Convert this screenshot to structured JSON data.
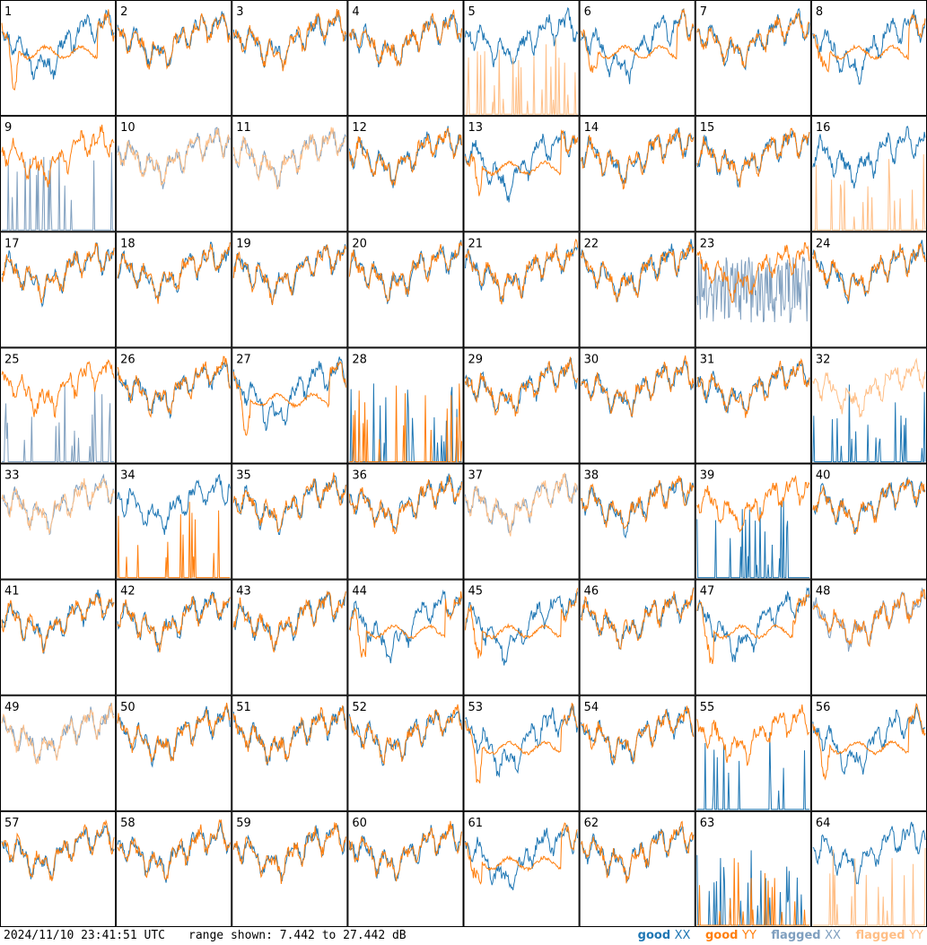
{
  "footer": {
    "timestamp": "2024/11/10 23:41:51 UTC",
    "range": "range shown: 7.442 to 27.442 dB",
    "legend": {
      "good_xx": {
        "prefix": "good ",
        "pol": "XX"
      },
      "good_yy": {
        "prefix": "good ",
        "pol": "YY"
      },
      "flagged_xx": {
        "prefix": "flagged ",
        "pol": "XX"
      },
      "flagged_yy": {
        "prefix": "flagged ",
        "pol": "YY"
      }
    }
  },
  "colors": {
    "good_xx": "#1f77b4",
    "good_yy": "#ff7f0e",
    "flagged_xx": "#7f9fbf",
    "flagged_yy": "#ffbf87"
  },
  "chart_data": {
    "type": "line",
    "layout": "8x8 small multiples",
    "ylim": [
      7.442,
      27.442
    ],
    "yunit": "dB",
    "panels": [
      {
        "id": "1",
        "xx": "good",
        "yy": "good",
        "style": "dip"
      },
      {
        "id": "2",
        "xx": "good",
        "yy": "good",
        "style": "normal"
      },
      {
        "id": "3",
        "xx": "good",
        "yy": "good",
        "style": "normal"
      },
      {
        "id": "4",
        "xx": "good",
        "yy": "good",
        "style": "normal"
      },
      {
        "id": "5",
        "xx": "good",
        "yy": "flagged",
        "style": "yy_spikes"
      },
      {
        "id": "6",
        "xx": "good",
        "yy": "good",
        "style": "dip"
      },
      {
        "id": "7",
        "xx": "good",
        "yy": "good",
        "style": "normal"
      },
      {
        "id": "8",
        "xx": "good",
        "yy": "good",
        "style": "dip"
      },
      {
        "id": "9",
        "xx": "flagged",
        "yy": "good",
        "style": "xx_spikes"
      },
      {
        "id": "10",
        "xx": "flagged",
        "yy": "flagged",
        "style": "normal"
      },
      {
        "id": "11",
        "xx": "flagged",
        "yy": "flagged",
        "style": "normal"
      },
      {
        "id": "12",
        "xx": "good",
        "yy": "good",
        "style": "normal"
      },
      {
        "id": "13",
        "xx": "good",
        "yy": "good",
        "style": "dip"
      },
      {
        "id": "14",
        "xx": "good",
        "yy": "good",
        "style": "normal"
      },
      {
        "id": "15",
        "xx": "good",
        "yy": "good",
        "style": "normal"
      },
      {
        "id": "16",
        "xx": "good",
        "yy": "flagged",
        "style": "yy_spikes"
      },
      {
        "id": "17",
        "xx": "good",
        "yy": "good",
        "style": "normal"
      },
      {
        "id": "18",
        "xx": "good",
        "yy": "good",
        "style": "normal"
      },
      {
        "id": "19",
        "xx": "good",
        "yy": "good",
        "style": "normal"
      },
      {
        "id": "20",
        "xx": "good",
        "yy": "good",
        "style": "normal"
      },
      {
        "id": "21",
        "xx": "good",
        "yy": "good",
        "style": "normal"
      },
      {
        "id": "22",
        "xx": "good",
        "yy": "good",
        "style": "normal"
      },
      {
        "id": "23",
        "xx": "flagged",
        "yy": "good",
        "style": "xx_noisy"
      },
      {
        "id": "24",
        "xx": "good",
        "yy": "good",
        "style": "normal"
      },
      {
        "id": "25",
        "xx": "flagged",
        "yy": "good",
        "style": "xx_spikes"
      },
      {
        "id": "26",
        "xx": "good",
        "yy": "good",
        "style": "normal"
      },
      {
        "id": "27",
        "xx": "good",
        "yy": "good",
        "style": "dip"
      },
      {
        "id": "28",
        "xx": "good",
        "yy": "good",
        "style": "both_spikes"
      },
      {
        "id": "29",
        "xx": "good",
        "yy": "good",
        "style": "normal"
      },
      {
        "id": "30",
        "xx": "good",
        "yy": "good",
        "style": "normal"
      },
      {
        "id": "31",
        "xx": "good",
        "yy": "good",
        "style": "normal"
      },
      {
        "id": "32",
        "xx": "good",
        "yy": "flagged",
        "style": "xx_spikes"
      },
      {
        "id": "33",
        "xx": "flagged",
        "yy": "flagged",
        "style": "normal"
      },
      {
        "id": "34",
        "xx": "good",
        "yy": "good",
        "style": "yy_spikes"
      },
      {
        "id": "35",
        "xx": "good",
        "yy": "good",
        "style": "normal"
      },
      {
        "id": "36",
        "xx": "good",
        "yy": "good",
        "style": "normal"
      },
      {
        "id": "37",
        "xx": "flagged",
        "yy": "flagged",
        "style": "normal"
      },
      {
        "id": "38",
        "xx": "good",
        "yy": "good",
        "style": "normal"
      },
      {
        "id": "39",
        "xx": "good",
        "yy": "good",
        "style": "xx_spikes"
      },
      {
        "id": "40",
        "xx": "good",
        "yy": "good",
        "style": "normal"
      },
      {
        "id": "41",
        "xx": "good",
        "yy": "good",
        "style": "normal"
      },
      {
        "id": "42",
        "xx": "good",
        "yy": "good",
        "style": "normal"
      },
      {
        "id": "43",
        "xx": "good",
        "yy": "good",
        "style": "normal"
      },
      {
        "id": "44",
        "xx": "good",
        "yy": "good",
        "style": "dip"
      },
      {
        "id": "45",
        "xx": "good",
        "yy": "good",
        "style": "dip"
      },
      {
        "id": "46",
        "xx": "good",
        "yy": "good",
        "style": "normal"
      },
      {
        "id": "47",
        "xx": "good",
        "yy": "good",
        "style": "dip"
      },
      {
        "id": "48",
        "xx": "flagged",
        "yy": "good",
        "style": "normal"
      },
      {
        "id": "49",
        "xx": "flagged",
        "yy": "flagged",
        "style": "normal"
      },
      {
        "id": "50",
        "xx": "good",
        "yy": "good",
        "style": "normal"
      },
      {
        "id": "51",
        "xx": "good",
        "yy": "good",
        "style": "normal"
      },
      {
        "id": "52",
        "xx": "good",
        "yy": "good",
        "style": "normal"
      },
      {
        "id": "53",
        "xx": "good",
        "yy": "good",
        "style": "dip"
      },
      {
        "id": "54",
        "xx": "good",
        "yy": "good",
        "style": "normal"
      },
      {
        "id": "55",
        "xx": "good",
        "yy": "good",
        "style": "xx_spikes"
      },
      {
        "id": "56",
        "xx": "good",
        "yy": "good",
        "style": "dip"
      },
      {
        "id": "57",
        "xx": "good",
        "yy": "good",
        "style": "normal"
      },
      {
        "id": "58",
        "xx": "good",
        "yy": "good",
        "style": "normal"
      },
      {
        "id": "59",
        "xx": "good",
        "yy": "good",
        "style": "normal"
      },
      {
        "id": "60",
        "xx": "good",
        "yy": "good",
        "style": "normal"
      },
      {
        "id": "61",
        "xx": "good",
        "yy": "good",
        "style": "dip"
      },
      {
        "id": "62",
        "xx": "good",
        "yy": "good",
        "style": "normal"
      },
      {
        "id": "63",
        "xx": "good",
        "yy": "good",
        "style": "both_spikes"
      },
      {
        "id": "64",
        "xx": "good",
        "yy": "flagged",
        "style": "yy_spikes"
      }
    ]
  }
}
